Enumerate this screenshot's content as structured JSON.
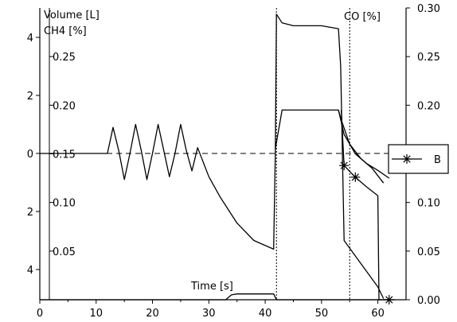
{
  "chart_data": {
    "type": "line",
    "title": "",
    "xlabel": "Time [s]",
    "ylabel_left": [
      "Volume [L]",
      "CH4 [%]"
    ],
    "ylabel_right": "CO [%]",
    "xlim": [
      0,
      65
    ],
    "ylim_volume": [
      -5,
      5
    ],
    "ylim_ch4": [
      0,
      0.3
    ],
    "ylim_co": [
      0,
      0.3
    ],
    "x_ticks": [
      0,
      10,
      20,
      30,
      40,
      50,
      60
    ],
    "volume_ticks": [
      4,
      2,
      0,
      2,
      4
    ],
    "ch4_ticks": [
      0.25,
      0.2,
      0.15,
      0.1,
      0.05
    ],
    "co_ticks": [
      0.3,
      0.25,
      0.2,
      0.15,
      0.1,
      0.05,
      0.0
    ],
    "reference_lines": {
      "horizontal_volume": 0,
      "vertical_x": [
        42,
        55
      ]
    },
    "series": [
      {
        "name": "",
        "axis": "volume",
        "x": [
          0,
          10,
          12,
          13,
          14,
          15,
          16,
          17,
          18,
          19,
          20,
          21,
          22,
          23,
          24,
          25,
          26,
          27,
          28,
          29,
          30,
          32,
          35,
          38,
          41.5,
          41.8,
          42,
          43,
          45,
          50,
          53,
          53.4,
          54,
          60,
          61
        ],
        "y": [
          0,
          0,
          0,
          0.9,
          0.1,
          -0.9,
          0,
          1.0,
          0.1,
          -0.9,
          0,
          1.0,
          0.1,
          -0.8,
          0,
          1.0,
          0.1,
          -0.6,
          0.2,
          -0.3,
          -0.8,
          -1.5,
          -2.4,
          -3.0,
          -3.3,
          0,
          4.8,
          4.5,
          4.4,
          4.4,
          4.3,
          3.0,
          -3.0,
          -4.6,
          -5.0
        ]
      },
      {
        "name": "",
        "axis": "ch4",
        "x": [
          0,
          10,
          20,
          30,
          33,
          34,
          35,
          38,
          41.5,
          42,
          50,
          61,
          63
        ],
        "y": [
          0.0,
          0.0,
          0.0,
          0.0,
          0.0,
          0.005,
          0.006,
          0.006,
          0.006,
          0.0,
          0.0,
          0.0,
          0.0
        ]
      },
      {
        "name": "",
        "axis": "co",
        "x": [
          41.8,
          43,
          53,
          53.5,
          55,
          57,
          59,
          61
        ],
        "y": [
          0.155,
          0.195,
          0.195,
          0.185,
          0.16,
          0.145,
          0.135,
          0.12
        ]
      },
      {
        "name": "",
        "axis": "co",
        "x": [
          53,
          54,
          56,
          58,
          60,
          62
        ],
        "y": [
          0.195,
          0.17,
          0.15,
          0.14,
          0.133,
          0.125
        ]
      },
      {
        "name": "B",
        "axis": "co",
        "marker": "asterisk",
        "x": [
          53.5,
          54,
          56,
          58,
          60,
          60.2,
          62
        ],
        "y": [
          0.195,
          0.138,
          0.126,
          0.116,
          0.107,
          0.0,
          0.0
        ],
        "marker_points": [
          [
            54,
            0.138
          ],
          [
            56,
            0.126
          ],
          [
            62,
            0.0
          ]
        ]
      }
    ],
    "legend": {
      "placement": "right",
      "entries": [
        "B"
      ]
    },
    "grid": false
  }
}
